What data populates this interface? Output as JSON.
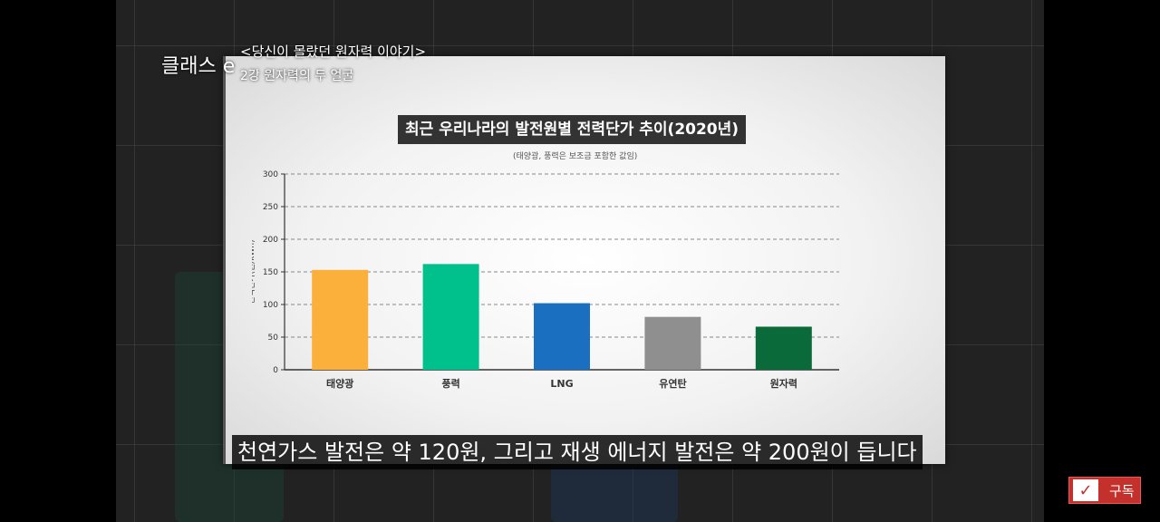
{
  "brand": "클래스 e",
  "lecture": {
    "title": "<당신이 몰랐던 원자력 이야기>",
    "subtitle": "2강  원자력의 두 얼굴"
  },
  "caption": "천연가스 발전은 약 120원, 그리고 재생 에너지 발전은 약 200원이 듭니다",
  "subscribe_label": "구독",
  "chart_data": {
    "type": "bar",
    "title": "최근 우리나라의 발전원별 전력단가 추이(2020년)",
    "subtitle": "(태양광, 풍력은 보조금 포함한 값임)",
    "xlabel": "",
    "ylabel": "전력단가(원/kWh)",
    "categories": [
      "태양광",
      "풍력",
      "LNG",
      "유연탄",
      "원자력"
    ],
    "values": [
      153,
      162,
      102,
      81,
      66
    ],
    "colors": [
      "#fbb03b",
      "#00c08b",
      "#1b6fc1",
      "#8f8f8f",
      "#0b6a3a"
    ],
    "ylim": [
      0,
      300
    ],
    "yticks": [
      0,
      50,
      100,
      150,
      200,
      250,
      300
    ],
    "grid": true
  }
}
